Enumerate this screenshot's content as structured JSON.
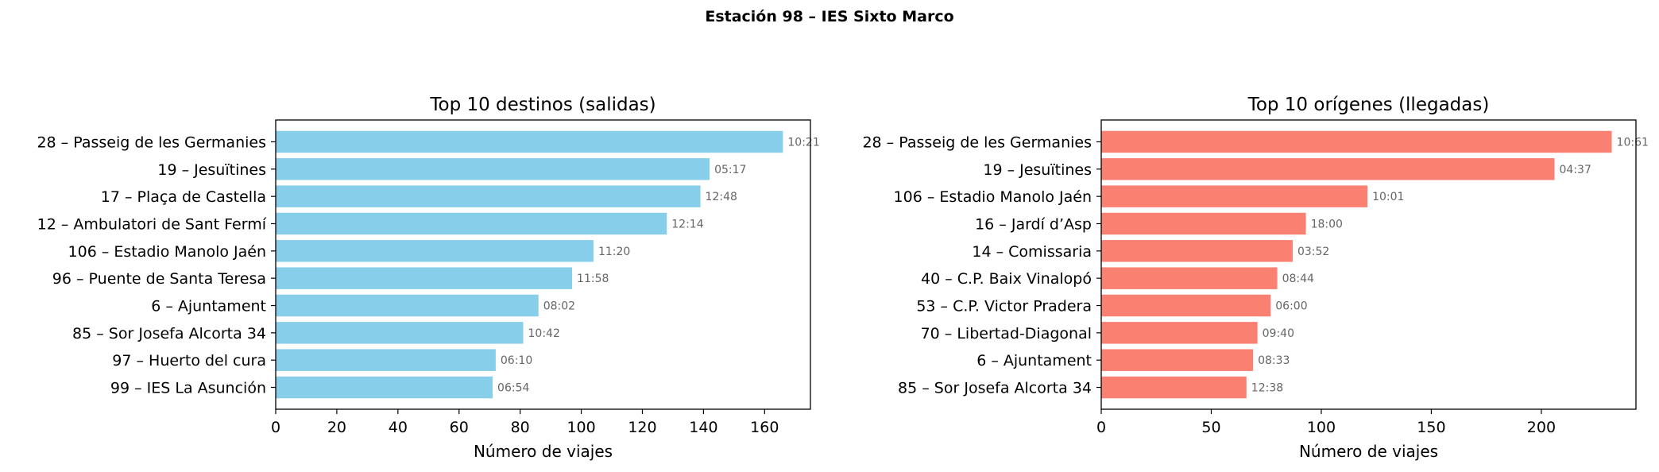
{
  "suptitle": "Estación 98 – IES Sixto Marco",
  "chart_data": [
    {
      "type": "bar",
      "orientation": "horizontal",
      "title": "Top 10 destinos (salidas)",
      "xlabel": "Número de viajes",
      "ylabel": "",
      "color": "#87CEEB",
      "xlim": [
        0,
        175
      ],
      "xticks": [
        0,
        20,
        40,
        60,
        80,
        100,
        120,
        140,
        160
      ],
      "categories": [
        "28 – Passeig de les Germanies",
        "19 – Jesuïtines",
        "17 – Plaça de Castella",
        "12 – Ambulatori de Sant Fermí",
        "106 – Estadio Manolo Jaén",
        "96 – Puente de Santa Teresa",
        "6 – Ajuntament",
        "85 – Sor Josefa Alcorta 34",
        "97 – Huerto del cura",
        "99 – IES La Asunción"
      ],
      "values": [
        166,
        142,
        139,
        128,
        104,
        97,
        86,
        81,
        72,
        71
      ],
      "bar_labels": [
        "10:21",
        "05:17",
        "12:48",
        "12:14",
        "11:20",
        "11:58",
        "08:02",
        "10:42",
        "06:10",
        "06:54"
      ]
    },
    {
      "type": "bar",
      "orientation": "horizontal",
      "title": "Top 10 orígenes (llegadas)",
      "xlabel": "Número de viajes",
      "ylabel": "",
      "color": "#FA8072",
      "xlim": [
        0,
        243
      ],
      "xticks": [
        0,
        50,
        100,
        150,
        200
      ],
      "categories": [
        "28 – Passeig de les Germanies",
        "19 – Jesuïtines",
        "106 – Estadio Manolo Jaén",
        "16 – Jardí d’Asp",
        "14 – Comissaria",
        "40 – C.P. Baix Vinalopó",
        "53 – C.P. Victor Pradera",
        "70 – Libertad-Diagonal",
        "6 – Ajuntament",
        "85 – Sor Josefa Alcorta 34"
      ],
      "values": [
        232,
        206,
        121,
        93,
        87,
        80,
        77,
        71,
        69,
        66
      ],
      "bar_labels": [
        "10:61",
        "04:37",
        "10:01",
        "18:00",
        "03:52",
        "08:44",
        "06:00",
        "09:40",
        "08:33",
        "12:38"
      ]
    }
  ]
}
